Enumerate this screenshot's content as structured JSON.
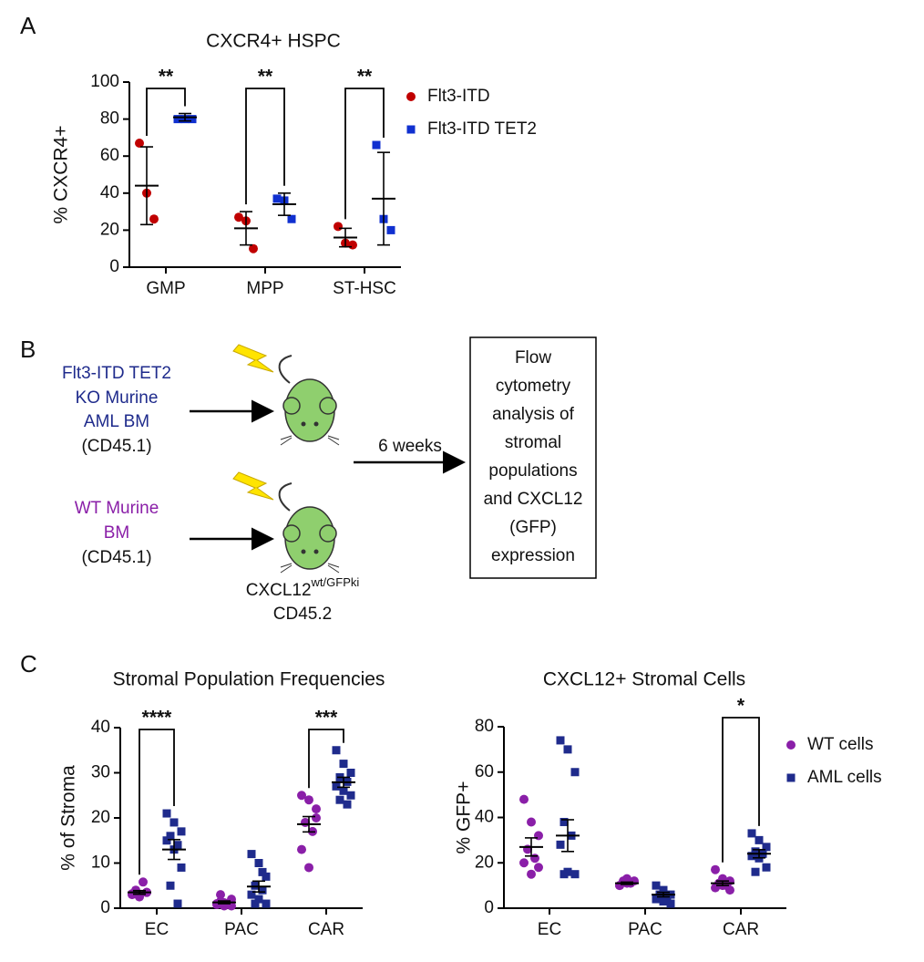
{
  "panel_labels": [
    "A",
    "B",
    "C"
  ],
  "chart_data": [
    {
      "type": "dot",
      "title": "CXCR4+ HSPC",
      "y_label": "% CXCR4+",
      "categories": [
        "GMP",
        "MPP",
        "ST-HSC"
      ],
      "ylim": [
        0,
        100
      ],
      "yticks": [
        0,
        20,
        40,
        60,
        80,
        100
      ],
      "legend": true,
      "series": [
        {
          "name": "Flt3-ITD",
          "color": "#c00000",
          "marker": "circle",
          "values": [
            [
              67,
              40,
              26
            ],
            [
              27,
              25,
              10
            ],
            [
              22,
              13,
              12
            ]
          ],
          "mean": [
            44,
            21,
            16
          ],
          "error": [
            21,
            9,
            5
          ]
        },
        {
          "name": "Flt3-ITD TET2",
          "color": "#1030d0",
          "marker": "square",
          "values": [
            [
              80,
              80,
              80
            ],
            [
              37,
              36,
              26
            ],
            [
              66,
              26,
              20
            ]
          ],
          "mean": [
            81,
            34,
            37
          ],
          "error": [
            2,
            6,
            25
          ]
        }
      ],
      "significance": [
        {
          "category": 0,
          "label": "**"
        },
        {
          "category": 1,
          "label": "**"
        },
        {
          "category": 2,
          "label": "**"
        }
      ]
    },
    {
      "type": "dot",
      "title": "Stromal Population Frequencies",
      "y_label": "% of Stroma",
      "categories": [
        "EC",
        "PAC",
        "CAR"
      ],
      "ylim": [
        0,
        40
      ],
      "yticks": [
        0,
        10,
        20,
        30,
        40
      ],
      "legend": false,
      "series": [
        {
          "color": "#8a1fa8",
          "marker": "circle",
          "values": [
            [
              3,
              2.5,
              3.5,
              4,
              5.8,
              3.2,
              2.8,
              3.5
            ],
            [
              1,
              0.5,
              2,
              1.5,
              1,
              0.8,
              1.2,
              0.5,
              3
            ],
            [
              25,
              24,
              22,
              19,
              17,
              13,
              9,
              20
            ]
          ],
          "mean": [
            3.5,
            1.3,
            18.6
          ],
          "error": [
            0.4,
            0.3,
            1.7
          ]
        },
        {
          "color": "#1f2b8c",
          "marker": "square",
          "values": [
            [
              21,
              19,
              17,
              16,
              14,
              15,
              13,
              9,
              5,
              1
            ],
            [
              12,
              10,
              7,
              5,
              4,
              3,
              2,
              1,
              1,
              8
            ],
            [
              35,
              32,
              30,
              29,
              28,
              27,
              26,
              25,
              24,
              23
            ]
          ],
          "mean": [
            13,
            4.8,
            27.9
          ],
          "error": [
            2.2,
            1.2,
            1.1
          ]
        }
      ],
      "significance": [
        {
          "category": 0,
          "label": "****"
        },
        {
          "category": 2,
          "label": "***"
        }
      ]
    },
    {
      "type": "dot",
      "title": "CXCL12+ Stromal Cells",
      "y_label": "% GFP+",
      "categories": [
        "EC",
        "PAC",
        "CAR"
      ],
      "ylim": [
        0,
        80
      ],
      "yticks": [
        0,
        20,
        40,
        60,
        80
      ],
      "legend": true,
      "series": [
        {
          "name": "WT cells",
          "color": "#8a1fa8",
          "marker": "circle",
          "values": [
            [
              48,
              38,
              32,
              26,
              22,
              20,
              15,
              18
            ],
            [
              10,
              11,
              12,
              12,
              11,
              10,
              13
            ],
            [
              17,
              13,
              12,
              11,
              10,
              9,
              10,
              8
            ]
          ],
          "mean": [
            27,
            11,
            11
          ],
          "error": [
            4,
            0.5,
            1
          ]
        },
        {
          "name": "AML cells",
          "color": "#1f2b8c",
          "marker": "square",
          "values": [
            [
              74,
              70,
              60,
              38,
              32,
              28,
              16,
              15,
              15
            ],
            [
              10,
              8,
              6,
              5,
              4,
              4,
              3,
              2,
              6
            ],
            [
              33,
              30,
              27,
              25,
              24,
              23,
              22,
              18,
              16
            ]
          ],
          "mean": [
            32,
            6,
            24
          ],
          "error": [
            7,
            1,
            1.8
          ]
        }
      ],
      "significance": [
        {
          "category": 2,
          "label": "*"
        }
      ]
    }
  ],
  "diagram": {
    "groups": [
      {
        "lines": [
          "Flt3-ITD TET2",
          "KO Murine",
          "AML BM"
        ],
        "note": "(CD45.1)"
      },
      {
        "lines": [
          "WT Murine",
          "BM"
        ],
        "note": "(CD45.1)"
      }
    ],
    "recipient": {
      "gene": "CXCL12",
      "superscript": "wt/GFPki",
      "marker": "CD45.2"
    },
    "arrow_label": "6 weeks",
    "box_lines": [
      "Flow",
      "cytometry",
      "analysis of",
      "stromal",
      "populations",
      "and CXCL12",
      "(GFP)",
      "expression"
    ]
  }
}
